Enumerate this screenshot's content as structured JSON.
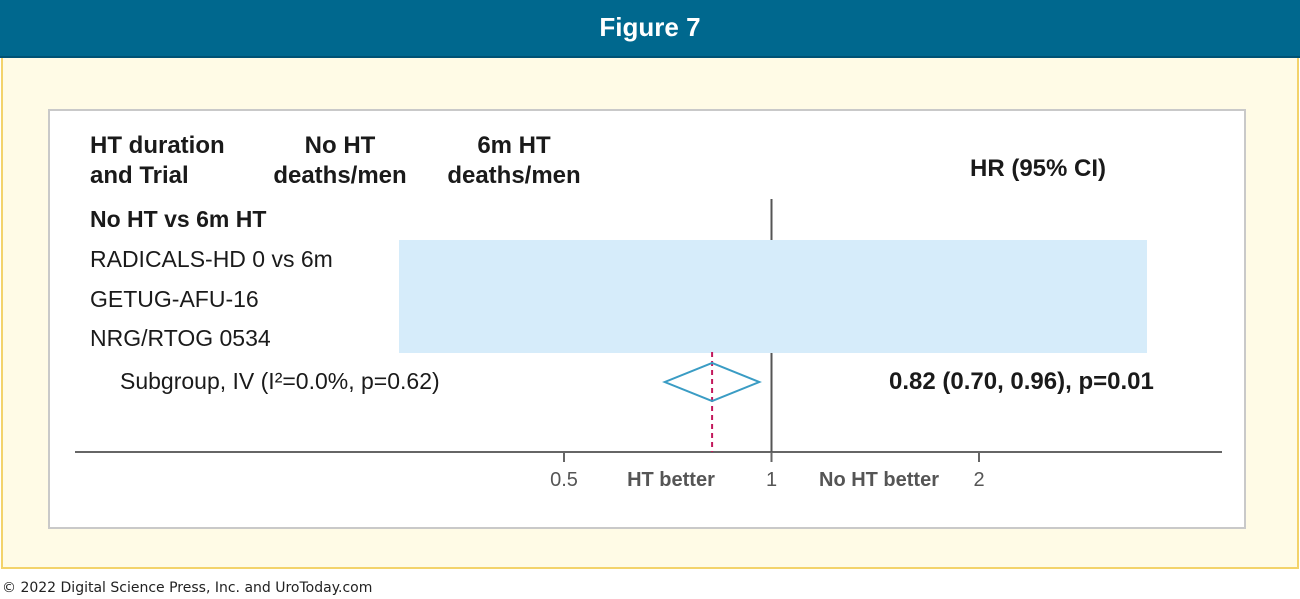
{
  "header": {
    "title": "Figure 7"
  },
  "columns": {
    "trial_line1": "HT duration",
    "trial_line2": "and Trial",
    "noht_line1": "No HT",
    "noht_line2": "deaths/men",
    "ht6_line1": "6m HT",
    "ht6_line2": "deaths/men",
    "hr": "HR (95% CI)"
  },
  "chart_data": {
    "type": "forest",
    "group_label": "No HT vs 6m HT",
    "studies": [
      {
        "label": "RADICALS-HD 0 vs 6m"
      },
      {
        "label": "GETUG-AFU-16"
      },
      {
        "label": "NRG/RTOG 0534"
      }
    ],
    "summary": {
      "label": "Subgroup, IV (I²=0.0%, p=0.62)",
      "hr": 0.82,
      "ci_low": 0.7,
      "ci_high": 0.96,
      "text": "0.82 (0.70, 0.96), p=0.01"
    },
    "x_scale": "log",
    "x_ticks": [
      0.5,
      1,
      2
    ],
    "x_tick_labels": [
      "0.5",
      "1",
      "2"
    ],
    "x_range": [
      0.5,
      2
    ],
    "null_value": 1,
    "left_direction": "HT better",
    "right_direction": "No HT better",
    "colors": {
      "diamond": "#3a9cc4",
      "overall_line": "#c2185b",
      "redaction": "#d6ecfa"
    }
  },
  "footer": {
    "copyright": "© 2022 Digital Science Press, Inc. and UroToday.com"
  }
}
